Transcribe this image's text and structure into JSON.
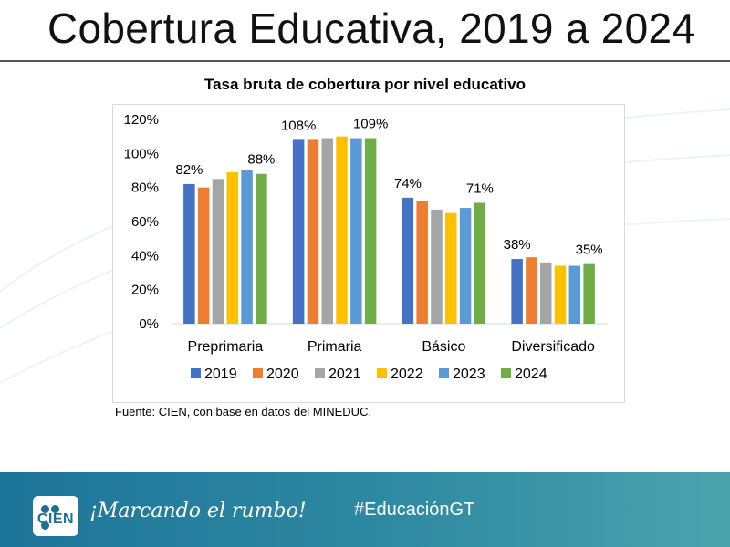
{
  "slide": {
    "title": "Cobertura Educativa, 2019 a 2024",
    "source": "Fuente: CIEN, con base en datos del MINEDUC."
  },
  "footer": {
    "logo_text": "CIEN",
    "slogan": "¡Marcando el rumbo!",
    "hashtag": "#EducaciónGT"
  },
  "chart_data": {
    "type": "bar",
    "title": "Tasa bruta de cobertura por nivel educativo",
    "xlabel": "",
    "ylabel": "",
    "ylim": [
      0,
      120
    ],
    "yticks": [
      "0%",
      "20%",
      "40%",
      "60%",
      "80%",
      "100%",
      "120%"
    ],
    "categories": [
      "Preprimaria",
      "Primaria",
      "Básico",
      "Diversificado"
    ],
    "series": [
      {
        "name": "2019",
        "color": "#4472c4",
        "values": [
          82,
          108,
          74,
          38
        ]
      },
      {
        "name": "2020",
        "color": "#ed7d31",
        "values": [
          80,
          108,
          72,
          39
        ]
      },
      {
        "name": "2021",
        "color": "#a5a5a5",
        "values": [
          85,
          109,
          67,
          36
        ]
      },
      {
        "name": "2022",
        "color": "#ffc000",
        "values": [
          89,
          110,
          65,
          34
        ]
      },
      {
        "name": "2023",
        "color": "#5b9bd5",
        "values": [
          90,
          109,
          68,
          34
        ]
      },
      {
        "name": "2024",
        "color": "#70ad47",
        "values": [
          88,
          109,
          71,
          35
        ]
      }
    ],
    "data_labels": [
      {
        "category": "Preprimaria",
        "series": "2019",
        "text": "82%"
      },
      {
        "category": "Preprimaria",
        "series": "2024",
        "text": "88%"
      },
      {
        "category": "Primaria",
        "series": "2019",
        "text": "108%"
      },
      {
        "category": "Primaria",
        "series": "2024",
        "text": "109%"
      },
      {
        "category": "Básico",
        "series": "2019",
        "text": "74%"
      },
      {
        "category": "Básico",
        "series": "2024",
        "text": "71%"
      },
      {
        "category": "Diversificado",
        "series": "2019",
        "text": "38%"
      },
      {
        "category": "Diversificado",
        "series": "2024",
        "text": "35%"
      }
    ],
    "legend_position": "bottom",
    "grid": false
  }
}
